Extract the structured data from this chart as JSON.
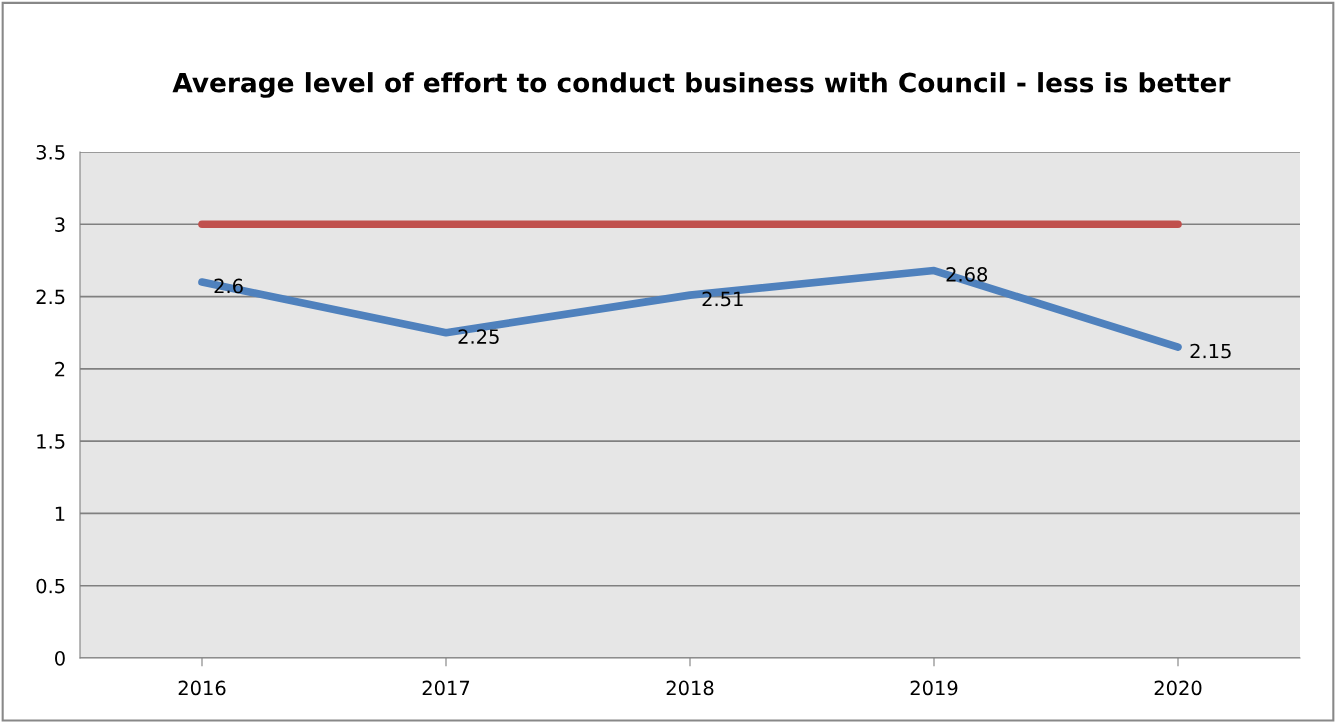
{
  "chart_data": {
    "type": "line",
    "title": "Average level of effort to conduct business with Council - less is better",
    "categories": [
      "2016",
      "2017",
      "2018",
      "2019",
      "2020"
    ],
    "series": [
      {
        "color": "#4f81bd",
        "values": [
          2.6,
          2.25,
          2.51,
          2.68,
          2.15
        ],
        "value_labels": [
          "2.6",
          "2.25",
          "2.51",
          "2.68",
          "2.15"
        ]
      },
      {
        "color": "#c0504d",
        "values": [
          3,
          3,
          3,
          3,
          3
        ]
      }
    ],
    "ylim": [
      0,
      3.5
    ],
    "yticks": [
      0,
      0.5,
      1,
      1.5,
      2,
      2.5,
      3,
      3.5
    ],
    "grid": "y"
  }
}
